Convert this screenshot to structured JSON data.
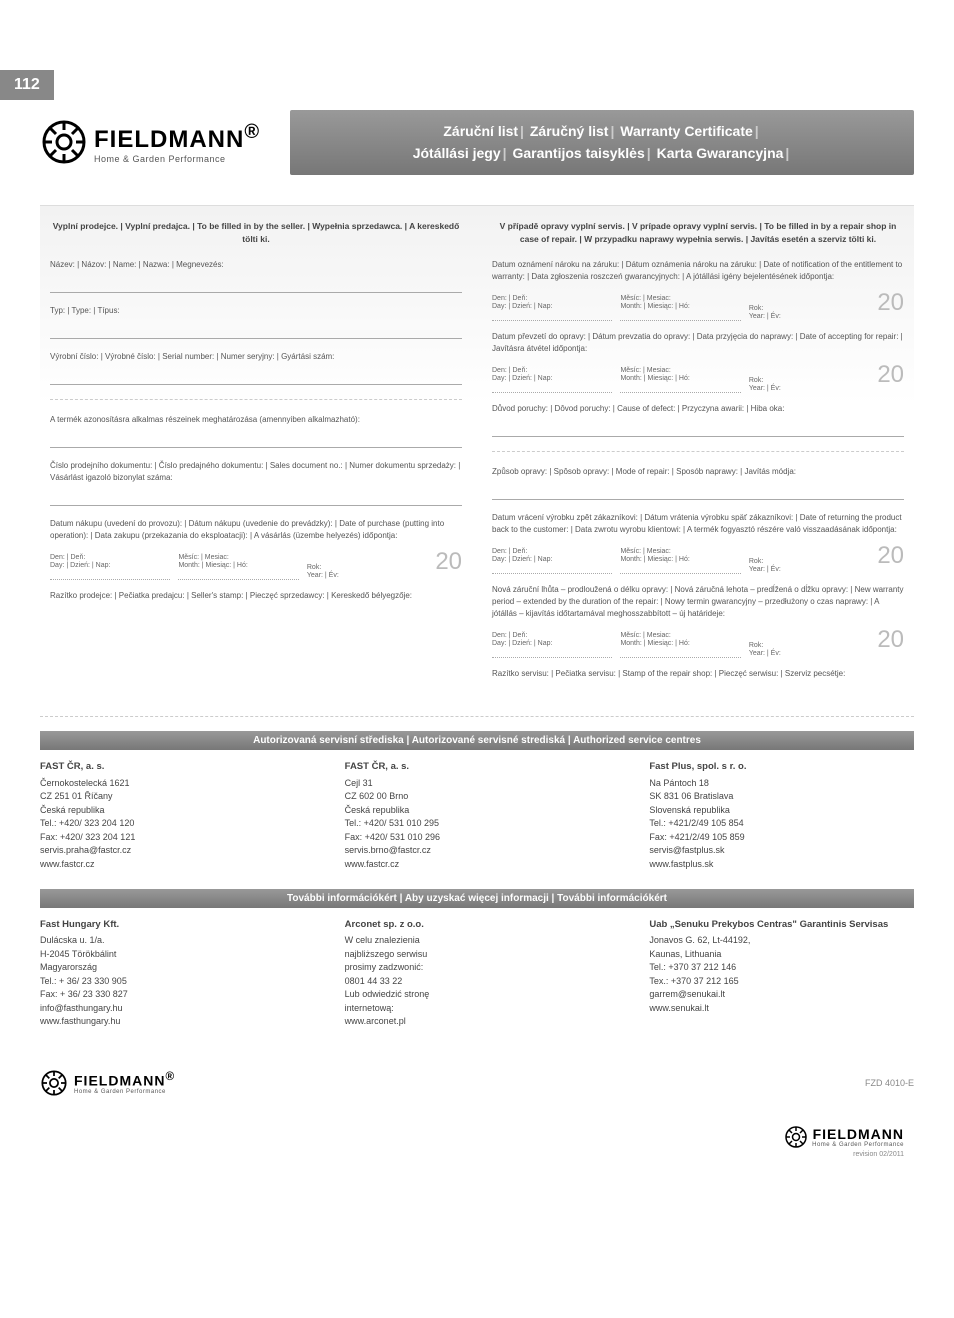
{
  "page_number": "112",
  "brand": {
    "name": "FIELDMANN",
    "reg": "®",
    "tagline": "Home & Garden Performance"
  },
  "header_titles": [
    "Záruční list",
    "Záručný list",
    "Warranty Certificate",
    "Jótállási jegy",
    "Garantijos taisyklės",
    "Karta Gwarancyjna"
  ],
  "seller_section_head": "Vyplní prodejce. | Vyplní predajca. | To be filled in by the seller. | Wypełnia sprzedawca. | A kereskedő tölti ki.",
  "repair_section_head": "V případě opravy vyplní servis. | V prípade opravy vyplní servis. | To be filled in by a repair shop in case of repair. | W przypadku naprawy wypełnia serwis. | Javítás esetén a szerviz tölti ki.",
  "labels": {
    "name": "Název: | Názov: | Name: | Nazwa: | Megnevezés:",
    "type": "Typ: | Type: | Típus:",
    "serial": "Výrobní číslo: | Výrobné číslo: | Serial number: | Numer seryjny: | Gyártási szám:",
    "parts_id": "A termék azonosításra alkalmas részeinek meghatározása (amennyiben alkalmazható):",
    "sales_doc": "Číslo prodejního dokumentu: | Číslo predajného dokumentu: | Sales document no.: | Numer dokumentu sprzedaży: | Vásárlást igazoló bizonylat száma:",
    "purchase_date": "Datum nákupu (uvedení do provozu): | Dátum nákupu (uvedenie do prevádzky): | Date of purchase (putting into operation): | Data zakupu (przekazania do eksploatacji): | A vásárlás (üzembe helyezés) időpontja:",
    "seller_stamp": "Razítko prodejce: | Pečiatka predajcu: | Seller's stamp: | Pieczęć sprzedawcy: | Kereskedő bélyegzője:",
    "notify_date": "Datum oznámení nároku na záruku: | Dátum oznámenia nároku na záruku: | Date of notification of the entitlement to warranty: | Data zgłoszenia roszczeń gwarancyjnych: | A jótállási igény bejelentésének időpontja:",
    "accept_date": "Datum převzetí do opravy: | Dátum prevzatia do opravy: | Data przyjęcia do naprawy: | Date of accepting for repair: | Javításra átvétel időpontja:",
    "defect_cause": "Důvod poruchy: | Dôvod poruchy: | Cause of defect: | Przyczyna awarii: | Hiba oka:",
    "repair_mode": "Způsob opravy: | Spôsob opravy: | Mode of repair: | Sposób naprawy: | Javítás módja:",
    "return_date": "Datum vrácení výrobku zpět zákazníkovi: | Dátum vrátenia výrobku späť zákazníkovi: | Date of returning the product back to the customer: | Data zwrotu wyrobu klientowi: | A termék fogyasztó részére való visszaadásának időpontja:",
    "new_warranty": "Nová záruční lhůta – prodloužená o délku opravy: | Nová záručná lehota – predĺžená o dĺžku opravy: | New warranty period – extended by the duration of the repair: | Nowy termin gwarancyjny – przedłużony o czas naprawy: | A jótállás – kijavítás időtartamával meghosszabbított – új határideje:",
    "service_stamp": "Razítko servisu: | Pečiatka servisu: | Stamp of the repair shop: | Pieczęć serwisu: | Szerviz pecsétje:"
  },
  "date_labels": {
    "day": "Den: | Deň:",
    "day2": "Day: | Dzień: | Nap:",
    "month": "Měsíc: | Mesiac:",
    "month2": "Month: | Miesiąc: | Hó:",
    "year": "Rok:",
    "year2": "Year: | Év:",
    "twenty": "20"
  },
  "service_band_1": "Autorizovaná servisní střediska | Autorizované servisné strediská | Authorized service centres",
  "centres_1": [
    {
      "name": "FAST ČR, a. s.",
      "lines": [
        "Černokostelecká 1621",
        "CZ 251 01 Říčany",
        "Česká republika",
        "Tel.: +420/ 323 204 120",
        "Fax: +420/ 323 204 121",
        "servis.praha@fastcr.cz",
        "www.fastcr.cz"
      ]
    },
    {
      "name": "FAST ČR, a. s.",
      "lines": [
        "Cejl 31",
        "CZ 602 00 Brno",
        "Česká republika",
        "Tel.: +420/ 531 010 295",
        "Fax: +420/ 531 010 296",
        "servis.brno@fastcr.cz",
        "www.fastcr.cz"
      ]
    },
    {
      "name": "Fast Plus, spol. s r. o.",
      "lines": [
        "Na Pántoch 18",
        "SK 831 06 Bratislava",
        "Slovenská republika",
        "Tel.: +421/2/49 105 854",
        "Fax: +421/2/49 105 859",
        "servis@fastplus.sk",
        "www.fastplus.sk"
      ]
    }
  ],
  "service_band_2": "További információkért | Aby uzyskać więcej informacji | További információkért",
  "centres_2": [
    {
      "name": "Fast Hungary Kft.",
      "lines": [
        "Dulácska u. 1/a.",
        "H-2045 Törökbálint",
        "Magyarország",
        "Tel.: + 36/ 23 330 905",
        "Fax: + 36/ 23 330 827",
        "info@fasthungary.hu",
        "www.fasthungary.hu"
      ]
    },
    {
      "name": "Arconet sp. z o.o.",
      "lines": [
        "W celu znalezienia",
        "najbliższego serwisu",
        "prosimy zadzwonić:",
        "0801 44 33 22",
        "Lub odwiedzić stronę",
        "internetową:",
        "www.arconet.pl"
      ]
    },
    {
      "name": "Uab „Senuku Prekybos Centras\" Garantinis Servisas",
      "lines": [
        "Jonavos G. 62, Lt-44192,",
        "Kaunas, Lithuania",
        "Tel.: +370 37 212 146",
        "Tex.: +370 37 212 165",
        "garrem@senukai.lt",
        "www.senukai.lt"
      ]
    }
  ],
  "revision": "revision 02/2011",
  "footer_model": "FZD 4010-E"
}
